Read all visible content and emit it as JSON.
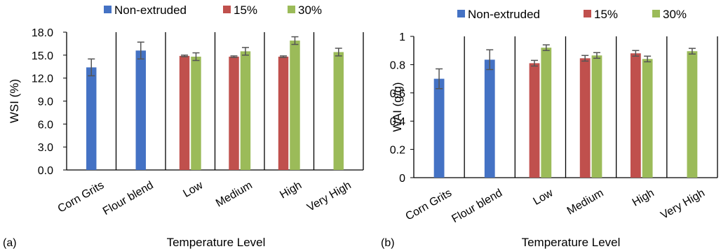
{
  "chart_data": [
    {
      "type": "bar",
      "panel_label": "(a)",
      "xlabel": "Temperature Level",
      "ylabel": "WSI (%)",
      "ylim": [
        0,
        18
      ],
      "yticks": [
        "0.0",
        "3.0",
        "6.0",
        "9.0",
        "12.0",
        "15.0",
        "18.0"
      ],
      "categories": [
        "Corn Grits",
        "Flour blend",
        "Low",
        "Medium",
        "High",
        "Very High"
      ],
      "legend_position": "top",
      "grid": false,
      "series": [
        {
          "name": "Non-extruded",
          "color": "#4472C4",
          "values": [
            13.4,
            15.6,
            null,
            null,
            null,
            null
          ],
          "errors": [
            1.1,
            1.1,
            null,
            null,
            null,
            null
          ]
        },
        {
          "name": "15%",
          "color": "#C0504D",
          "values": [
            null,
            null,
            14.9,
            14.8,
            14.8,
            null
          ],
          "errors": [
            null,
            null,
            0.1,
            0.1,
            0.1,
            null
          ]
        },
        {
          "name": "30%",
          "color": "#9BBB59",
          "values": [
            null,
            null,
            14.8,
            15.5,
            16.9,
            15.4
          ],
          "errors": [
            null,
            null,
            0.5,
            0.5,
            0.5,
            0.5
          ]
        }
      ]
    },
    {
      "type": "bar",
      "panel_label": "(b)",
      "xlabel": "Temperature Level",
      "ylabel": "WAI (g/g)",
      "ylim": [
        0,
        1
      ],
      "yticks": [
        "0",
        "0.2",
        "0.4",
        "0.6",
        "0.8",
        "1"
      ],
      "categories": [
        "Corn Grits",
        "Flour blend",
        "Low",
        "Medium",
        "High",
        "Very High"
      ],
      "legend_position": "top",
      "grid": false,
      "series": [
        {
          "name": "Non-extruded",
          "color": "#4472C4",
          "values": [
            0.7,
            0.835,
            null,
            null,
            null,
            null
          ],
          "errors": [
            0.07,
            0.07,
            null,
            null,
            null,
            null
          ]
        },
        {
          "name": "15%",
          "color": "#C0504D",
          "values": [
            null,
            null,
            0.81,
            0.845,
            0.88,
            null
          ],
          "errors": [
            null,
            null,
            0.02,
            0.02,
            0.02,
            null
          ]
        },
        {
          "name": "30%",
          "color": "#9BBB59",
          "values": [
            null,
            null,
            0.92,
            0.865,
            0.84,
            0.895
          ],
          "errors": [
            null,
            null,
            0.02,
            0.02,
            0.02,
            0.02
          ]
        }
      ]
    }
  ]
}
